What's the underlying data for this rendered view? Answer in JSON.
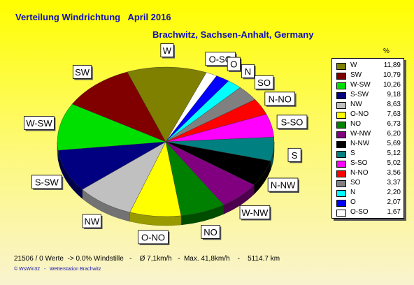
{
  "header": {
    "title": "Verteilung Windrichtung   April 2016",
    "location": "Brachwitz, Sachsen-Anhalt, Germany"
  },
  "legend": {
    "percent_header": "%"
  },
  "footer": {
    "stats": "21506 / 0 Werte  -> 0.0% Windstille   -    Ø 7,1km/h   -  Max. 41,8km/h    -    5114.7 km",
    "copyright": "© WsWin32   -   Wetterstation Brachwitz"
  },
  "chart_data": {
    "type": "pie",
    "title": "Verteilung Windrichtung   April 2016",
    "subtitle": "Brachwitz, Sachsen-Anhalt, Germany",
    "unit": "%",
    "legend_position": "right",
    "slices": [
      {
        "label": "W",
        "value": 11.89,
        "value_text": "11,89",
        "color": "#808000"
      },
      {
        "label": "SW",
        "value": 10.79,
        "value_text": "10,79",
        "color": "#800000"
      },
      {
        "label": "W-SW",
        "value": 10.26,
        "value_text": "10,26",
        "color": "#00e000"
      },
      {
        "label": "S-SW",
        "value": 9.18,
        "value_text": "9,18",
        "color": "#000080"
      },
      {
        "label": "NW",
        "value": 8.63,
        "value_text": "8,63",
        "color": "#c0c0c0"
      },
      {
        "label": "O-NO",
        "value": 7.63,
        "value_text": "7,63",
        "color": "#ffff00"
      },
      {
        "label": "NO",
        "value": 6.73,
        "value_text": "6,73",
        "color": "#008000"
      },
      {
        "label": "W-NW",
        "value": 6.2,
        "value_text": "6,20",
        "color": "#800080"
      },
      {
        "label": "N-NW",
        "value": 5.69,
        "value_text": "5,69",
        "color": "#000000"
      },
      {
        "label": "S",
        "value": 5.12,
        "value_text": "5,12",
        "color": "#008080"
      },
      {
        "label": "S-SO",
        "value": 5.02,
        "value_text": "5,02",
        "color": "#ff00ff"
      },
      {
        "label": "N-NO",
        "value": 3.56,
        "value_text": "3,56",
        "color": "#ff0000"
      },
      {
        "label": "SO",
        "value": 3.37,
        "value_text": "3,37",
        "color": "#808080"
      },
      {
        "label": "N",
        "value": 2.2,
        "value_text": "2,20",
        "color": "#00ffff"
      },
      {
        "label": "O",
        "value": 2.07,
        "value_text": "2,07",
        "color": "#0000ff"
      },
      {
        "label": "O-SO",
        "value": 1.67,
        "value_text": "1,67",
        "color": "#ffffff"
      }
    ],
    "pie_order": [
      "O-SO",
      "O",
      "N",
      "SO",
      "N-NO",
      "S-SO",
      "S",
      "N-NW",
      "W-NW",
      "NO",
      "O-NO",
      "NW",
      "S-SW",
      "W-SW",
      "SW",
      "W"
    ]
  }
}
